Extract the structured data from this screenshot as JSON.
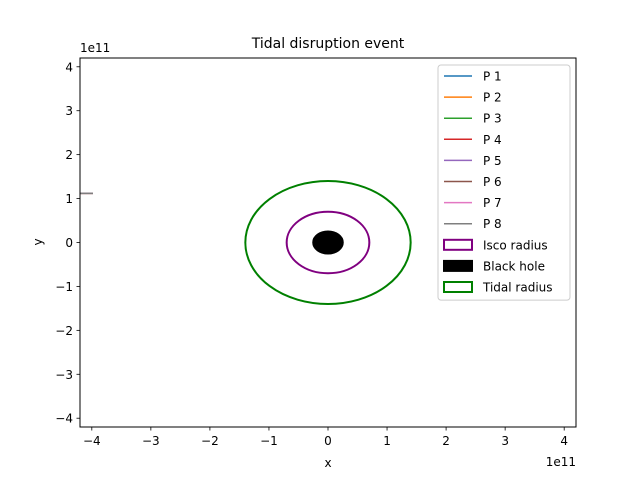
{
  "chart_data": {
    "type": "line",
    "title": "Tidal disruption event",
    "xlabel": "x",
    "ylabel": "y",
    "x_offset_label": "1e11",
    "y_offset_label": "1e11",
    "xlim": [
      -4.2,
      4.2
    ],
    "ylim": [
      -4.2,
      4.2
    ],
    "xticks": [
      -4,
      -3,
      -2,
      -1,
      0,
      1,
      2,
      3,
      4
    ],
    "yticks": [
      -4,
      -3,
      -2,
      -1,
      0,
      1,
      2,
      3,
      4
    ],
    "xtick_labels": [
      "−4",
      "−3",
      "−2",
      "−1",
      "0",
      "1",
      "2",
      "3",
      "4"
    ],
    "ytick_labels": [
      "−4",
      "−3",
      "−2",
      "−1",
      "0",
      "1",
      "2",
      "3",
      "4"
    ],
    "grid": false,
    "legend_position": "upper right",
    "series": [
      {
        "name": "P 1",
        "color": "#1f77b4",
        "x": [
          -4.2,
          -3.98
        ],
        "y": [
          1.12,
          1.12
        ]
      },
      {
        "name": "P 2",
        "color": "#ff7f0e",
        "x": [
          -4.2,
          -3.98
        ],
        "y": [
          1.12,
          1.12
        ]
      },
      {
        "name": "P 3",
        "color": "#2ca02c",
        "x": [
          -4.2,
          -3.98
        ],
        "y": [
          1.12,
          1.12
        ]
      },
      {
        "name": "P 4",
        "color": "#d62728",
        "x": [
          -4.2,
          -3.98
        ],
        "y": [
          1.12,
          1.12
        ]
      },
      {
        "name": "P 5",
        "color": "#9467bd",
        "x": [
          -4.2,
          -3.98
        ],
        "y": [
          1.12,
          1.12
        ]
      },
      {
        "name": "P 6",
        "color": "#8c564b",
        "x": [
          -4.2,
          -3.98
        ],
        "y": [
          1.12,
          1.12
        ]
      },
      {
        "name": "P 7",
        "color": "#e377c2",
        "x": [
          -4.2,
          -3.98
        ],
        "y": [
          1.12,
          1.12
        ]
      },
      {
        "name": "P 8",
        "color": "#7f7f7f",
        "x": [
          -4.2,
          -3.98
        ],
        "y": [
          1.12,
          1.12
        ]
      }
    ],
    "circles": [
      {
        "name": "Isco radius",
        "cx": 0,
        "cy": 0,
        "r": 0.7,
        "fill": "none",
        "edge": "#800080"
      },
      {
        "name": "Black hole",
        "cx": 0,
        "cy": 0,
        "r": 0.25,
        "fill": "#000000",
        "edge": "#000000"
      },
      {
        "name": "Tidal radius",
        "cx": 0,
        "cy": 0,
        "r": 1.4,
        "fill": "none",
        "edge": "#008000"
      }
    ]
  }
}
